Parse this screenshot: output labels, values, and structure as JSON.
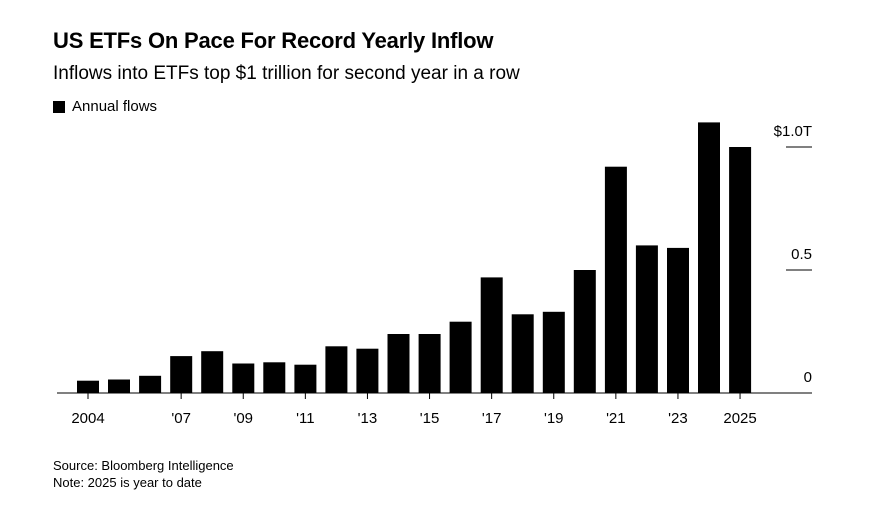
{
  "chart_data": {
    "type": "bar",
    "title": "US ETFs On Pace For Record Yearly Inflow",
    "subtitle": "Inflows into ETFs top $1 trillion for second year in a row",
    "legend": [
      {
        "label": "Annual flows",
        "color": "#000000"
      }
    ],
    "categories": [
      "2004",
      "2005",
      "2006",
      "2007",
      "2008",
      "2009",
      "2010",
      "2011",
      "2012",
      "2013",
      "2014",
      "2015",
      "2016",
      "2017",
      "2018",
      "2019",
      "2020",
      "2021",
      "2022",
      "2023",
      "2024",
      "2025"
    ],
    "values": [
      0.05,
      0.055,
      0.07,
      0.15,
      0.17,
      0.12,
      0.125,
      0.115,
      0.19,
      0.18,
      0.24,
      0.24,
      0.29,
      0.47,
      0.32,
      0.33,
      0.5,
      0.92,
      0.6,
      0.59,
      1.1,
      1.0
    ],
    "x_tick_labels": [
      {
        "category": "2004",
        "label": "2004"
      },
      {
        "category": "2007",
        "label": "'07"
      },
      {
        "category": "2009",
        "label": "'09"
      },
      {
        "category": "2011",
        "label": "'11"
      },
      {
        "category": "2013",
        "label": "'13"
      },
      {
        "category": "2015",
        "label": "'15"
      },
      {
        "category": "2017",
        "label": "'17"
      },
      {
        "category": "2019",
        "label": "'19"
      },
      {
        "category": "2021",
        "label": "'21"
      },
      {
        "category": "2023",
        "label": "'23"
      },
      {
        "category": "2025",
        "label": "2025"
      }
    ],
    "y_ticks": [
      {
        "value": 0,
        "label": "0"
      },
      {
        "value": 0.5,
        "label": "0.5"
      },
      {
        "value": 1.0,
        "label": "$1.0T"
      }
    ],
    "ylim": [
      0,
      1.1
    ],
    "xlabel": "",
    "ylabel": "",
    "grid": false,
    "bar_color": "#000000",
    "axis_color": "#000000"
  },
  "footer": {
    "source": "Source: Bloomberg Intelligence",
    "note": "Note: 2025 is year to date"
  }
}
